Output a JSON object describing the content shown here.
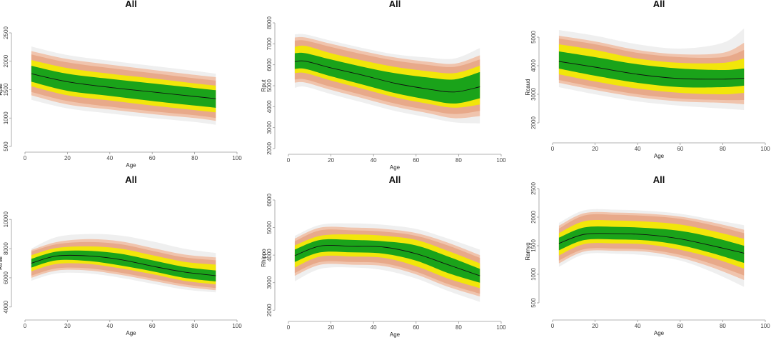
{
  "colors": {
    "band_outer": "#efefef",
    "band_salmon_light": "#f0c4ad",
    "band_salmon": "#e8a98a",
    "band_yellow": "#f2e60a",
    "band_green": "#1aa31a",
    "median": "#111111"
  },
  "chart_data": [
    {
      "type": "area",
      "title": "All",
      "xlabel": "Age",
      "ylabel": "Rpal",
      "xlim": [
        0,
        100
      ],
      "ylim": [
        500,
        2500
      ],
      "xticks": [
        0,
        20,
        40,
        60,
        80,
        100
      ],
      "yticks": [
        500,
        1000,
        1500,
        2000,
        2500
      ],
      "x": [
        3,
        20,
        40,
        60,
        80,
        90
      ],
      "bands": [
        {
          "name": "outer",
          "lower": [
            1320,
            1170,
            1080,
            1000,
            930,
            880
          ],
          "upper": [
            2260,
            2110,
            2010,
            1920,
            1830,
            1780
          ]
        },
        {
          "name": "salmon_light",
          "lower": [
            1400,
            1240,
            1150,
            1070,
            1000,
            950
          ],
          "upper": [
            2180,
            2040,
            1940,
            1850,
            1760,
            1720
          ]
        },
        {
          "name": "salmon",
          "lower": [
            1460,
            1300,
            1200,
            1120,
            1050,
            1000
          ],
          "upper": [
            2120,
            1980,
            1880,
            1790,
            1700,
            1660
          ]
        },
        {
          "name": "yellow",
          "lower": [
            1560,
            1400,
            1310,
            1220,
            1140,
            1100
          ],
          "upper": [
            2020,
            1880,
            1780,
            1700,
            1610,
            1570
          ]
        },
        {
          "name": "green",
          "lower": [
            1640,
            1480,
            1390,
            1300,
            1220,
            1180
          ],
          "upper": [
            1920,
            1780,
            1690,
            1610,
            1530,
            1490
          ]
        }
      ],
      "median": [
        1780,
        1640,
        1540,
        1460,
        1380,
        1340
      ]
    },
    {
      "type": "area",
      "title": "All",
      "xlabel": "Age",
      "ylabel": "Rput",
      "xlim": [
        0,
        100
      ],
      "ylim": [
        2000,
        8000
      ],
      "xticks": [
        0,
        20,
        40,
        60,
        80,
        100
      ],
      "yticks": [
        2000,
        3000,
        4000,
        5000,
        6000,
        7000,
        8000
      ],
      "x": [
        3,
        8,
        20,
        35,
        50,
        65,
        78,
        90
      ],
      "bands": [
        {
          "name": "outer",
          "lower": [
            4900,
            4950,
            4600,
            4200,
            3800,
            3500,
            3250,
            3200
          ],
          "upper": [
            7450,
            7450,
            7150,
            6800,
            6500,
            6350,
            6300,
            6800
          ]
        },
        {
          "name": "salmon_light",
          "lower": [
            5150,
            5150,
            4800,
            4400,
            4000,
            3700,
            3450,
            3550
          ],
          "upper": [
            7300,
            7300,
            7000,
            6650,
            6350,
            6150,
            6050,
            6450
          ]
        },
        {
          "name": "salmon",
          "lower": [
            5300,
            5300,
            4950,
            4550,
            4150,
            3850,
            3650,
            3800
          ],
          "upper": [
            7150,
            7150,
            6850,
            6500,
            6200,
            6000,
            5900,
            6250
          ]
        },
        {
          "name": "yellow",
          "lower": [
            5600,
            5600,
            5250,
            4850,
            4450,
            4150,
            3950,
            4100
          ],
          "upper": [
            6850,
            6900,
            6550,
            6200,
            5900,
            5700,
            5600,
            5950
          ]
        },
        {
          "name": "green",
          "lower": [
            5800,
            5800,
            5450,
            5050,
            4650,
            4350,
            4150,
            4400
          ],
          "upper": [
            6550,
            6550,
            6250,
            5900,
            5600,
            5400,
            5300,
            5650
          ]
        }
      ],
      "median": [
        6150,
        6170,
        5850,
        5500,
        5120,
        4850,
        4700,
        4950
      ]
    },
    {
      "type": "area",
      "title": "All",
      "xlabel": "Age",
      "ylabel": "Rcaud",
      "xlim": [
        0,
        100
      ],
      "ylim": [
        1500,
        5000
      ],
      "xticks": [
        0,
        20,
        40,
        60,
        80,
        100
      ],
      "yticks": [
        2000,
        3000,
        4000,
        5000
      ],
      "x": [
        3,
        20,
        40,
        60,
        80,
        90
      ],
      "bands": [
        {
          "name": "outer",
          "lower": [
            3250,
            3000,
            2750,
            2600,
            2500,
            2450
          ],
          "upper": [
            5250,
            5050,
            4750,
            4600,
            4800,
            5300
          ]
        },
        {
          "name": "salmon_light",
          "lower": [
            3400,
            3150,
            2900,
            2750,
            2700,
            2650
          ],
          "upper": [
            5050,
            4850,
            4550,
            4400,
            4450,
            4800
          ]
        },
        {
          "name": "salmon",
          "lower": [
            3500,
            3250,
            3000,
            2850,
            2800,
            2800
          ],
          "upper": [
            4950,
            4750,
            4450,
            4300,
            4300,
            4550
          ]
        },
        {
          "name": "yellow",
          "lower": [
            3700,
            3450,
            3200,
            3050,
            3000,
            3050
          ],
          "upper": [
            4750,
            4550,
            4250,
            4100,
            4100,
            4250
          ]
        },
        {
          "name": "green",
          "lower": [
            3900,
            3650,
            3400,
            3250,
            3250,
            3300
          ],
          "upper": [
            4500,
            4300,
            4050,
            3900,
            3850,
            3900
          ]
        }
      ],
      "median": [
        4150,
        3950,
        3700,
        3550,
        3530,
        3560
      ]
    },
    {
      "type": "area",
      "title": "All",
      "xlabel": "Age",
      "ylabel": "Rthal",
      "xlim": [
        0,
        100
      ],
      "ylim": [
        3500,
        10500
      ],
      "xticks": [
        0,
        20,
        40,
        60,
        80,
        100
      ],
      "yticks": [
        4000,
        6000,
        8000,
        10000
      ],
      "x": [
        3,
        15,
        30,
        45,
        60,
        75,
        90
      ],
      "bands": [
        {
          "name": "outer",
          "lower": [
            5800,
            6300,
            6300,
            6000,
            5600,
            5200,
            5000
          ],
          "upper": [
            8000,
            8800,
            9000,
            8900,
            8500,
            8000,
            7700
          ]
        },
        {
          "name": "salmon_light",
          "lower": [
            6000,
            6500,
            6500,
            6200,
            5800,
            5400,
            5150
          ],
          "upper": [
            7900,
            8450,
            8650,
            8500,
            8050,
            7600,
            7400
          ]
        },
        {
          "name": "salmon",
          "lower": [
            6150,
            6650,
            6650,
            6350,
            5950,
            5550,
            5300
          ],
          "upper": [
            7800,
            8300,
            8450,
            8300,
            7850,
            7400,
            7200
          ]
        },
        {
          "name": "yellow",
          "lower": [
            6450,
            6950,
            6950,
            6650,
            6250,
            5800,
            5550
          ],
          "upper": [
            7550,
            8050,
            8150,
            8000,
            7550,
            7100,
            6900
          ]
        },
        {
          "name": "green",
          "lower": [
            6700,
            7200,
            7150,
            6850,
            6450,
            6000,
            5750
          ],
          "upper": [
            7300,
            7800,
            7850,
            7650,
            7200,
            6750,
            6500
          ]
        }
      ],
      "median": [
        7000,
        7500,
        7500,
        7250,
        6800,
        6400,
        6150
      ]
    },
    {
      "type": "area",
      "title": "All",
      "xlabel": "Age",
      "ylabel": "Rhippo",
      "xlim": [
        0,
        100
      ],
      "ylim": [
        1800,
        6000
      ],
      "xticks": [
        0,
        20,
        40,
        60,
        80,
        100
      ],
      "yticks": [
        2000,
        3000,
        4000,
        5000,
        6000
      ],
      "x": [
        3,
        15,
        30,
        45,
        60,
        75,
        90
      ],
      "bands": [
        {
          "name": "outer",
          "lower": [
            3050,
            3500,
            3550,
            3450,
            3150,
            2700,
            2300
          ],
          "upper": [
            4700,
            5100,
            5150,
            5100,
            4950,
            4600,
            4200
          ]
        },
        {
          "name": "salmon_light",
          "lower": [
            3250,
            3650,
            3650,
            3600,
            3300,
            2850,
            2500
          ],
          "upper": [
            4600,
            5000,
            5000,
            4950,
            4800,
            4450,
            4000
          ]
        },
        {
          "name": "salmon",
          "lower": [
            3350,
            3750,
            3750,
            3700,
            3400,
            2950,
            2600
          ],
          "upper": [
            4500,
            4900,
            4900,
            4850,
            4700,
            4350,
            3900
          ]
        },
        {
          "name": "yellow",
          "lower": [
            3550,
            3950,
            3950,
            3900,
            3600,
            3150,
            2800
          ],
          "upper": [
            4350,
            4700,
            4750,
            4700,
            4550,
            4150,
            3700
          ]
        },
        {
          "name": "green",
          "lower": [
            3750,
            4100,
            4100,
            4050,
            3800,
            3350,
            3000
          ],
          "upper": [
            4200,
            4550,
            4550,
            4500,
            4350,
            3950,
            3500
          ]
        }
      ],
      "median": [
        3980,
        4330,
        4320,
        4290,
        4050,
        3650,
        3250
      ]
    },
    {
      "type": "area",
      "title": "All",
      "xlabel": "Age",
      "ylabel": "Ramyg",
      "xlim": [
        0,
        100
      ],
      "ylim": [
        300,
        2500
      ],
      "xticks": [
        0,
        20,
        40,
        60,
        80,
        100
      ],
      "yticks": [
        500,
        1000,
        1500,
        2000,
        2500
      ],
      "x": [
        3,
        15,
        30,
        45,
        60,
        75,
        90
      ],
      "bands": [
        {
          "name": "outer",
          "lower": [
            1130,
            1350,
            1360,
            1330,
            1240,
            1040,
            780
          ],
          "upper": [
            1900,
            2120,
            2130,
            2110,
            2060,
            1960,
            1860
          ]
        },
        {
          "name": "salmon_light",
          "lower": [
            1190,
            1400,
            1410,
            1390,
            1290,
            1120,
            900
          ],
          "upper": [
            1850,
            2070,
            2080,
            2060,
            2010,
            1910,
            1780
          ]
        },
        {
          "name": "salmon",
          "lower": [
            1240,
            1440,
            1450,
            1430,
            1340,
            1180,
            980
          ],
          "upper": [
            1800,
            2030,
            2040,
            2020,
            1970,
            1860,
            1720
          ]
        },
        {
          "name": "yellow",
          "lower": [
            1330,
            1530,
            1540,
            1520,
            1430,
            1290,
            1100
          ],
          "upper": [
            1720,
            1930,
            1940,
            1920,
            1870,
            1760,
            1620
          ]
        },
        {
          "name": "green",
          "lower": [
            1420,
            1600,
            1610,
            1590,
            1510,
            1370,
            1200
          ],
          "upper": [
            1640,
            1820,
            1830,
            1810,
            1760,
            1650,
            1500
          ]
        }
      ],
      "median": [
        1540,
        1700,
        1710,
        1690,
        1620,
        1500,
        1370
      ]
    }
  ]
}
